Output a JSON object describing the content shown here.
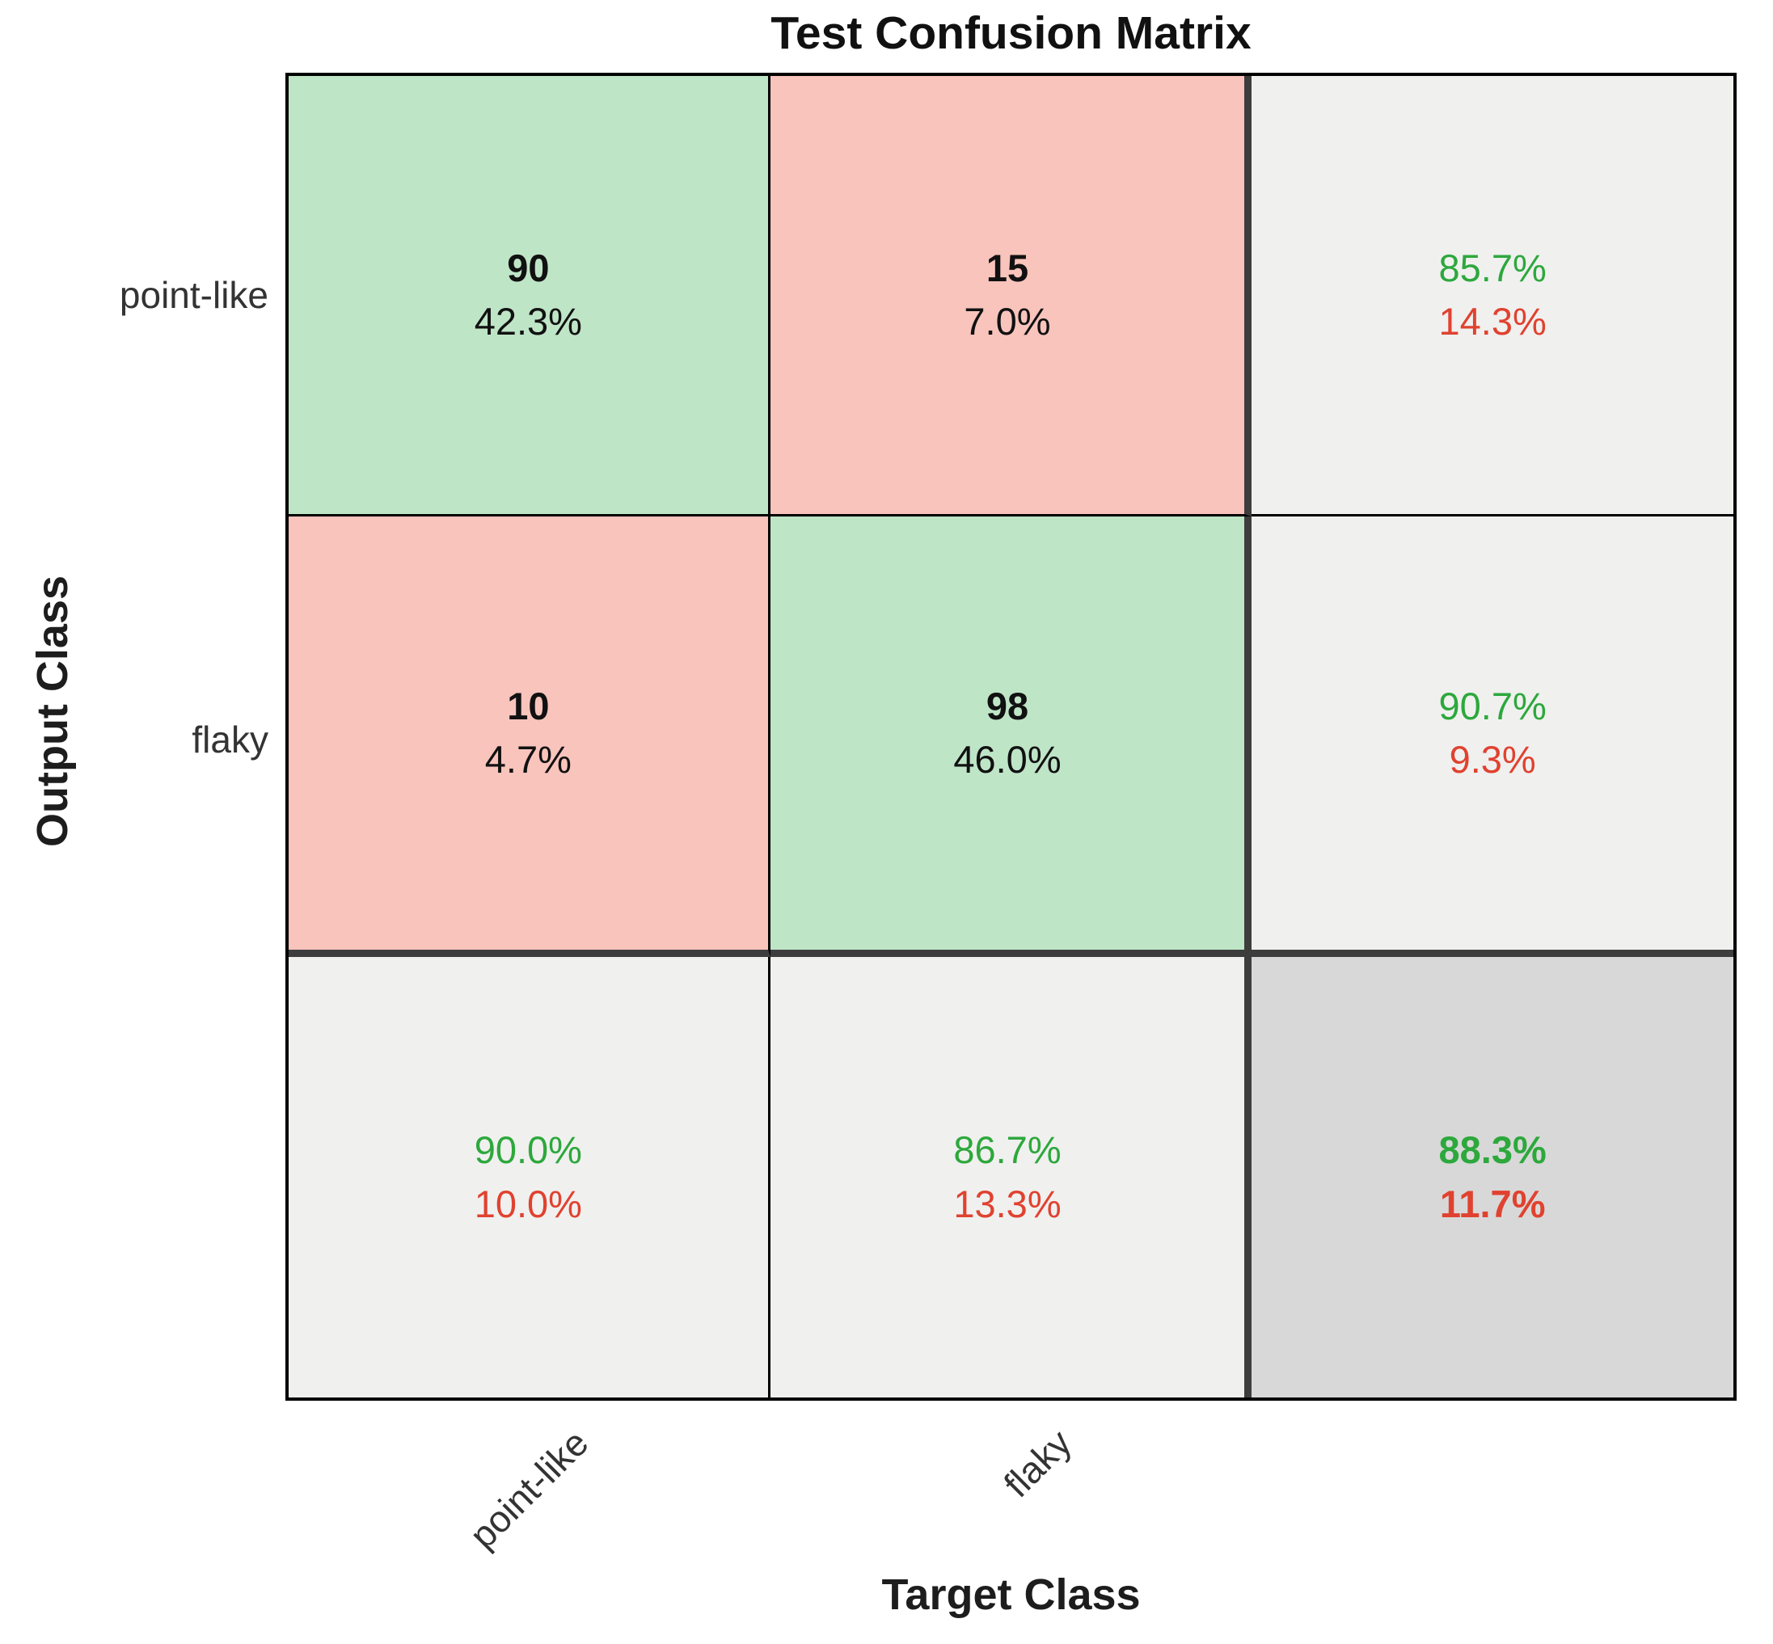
{
  "title": "Test Confusion Matrix",
  "axes": {
    "x_label": "Target Class",
    "y_label": "Output Class"
  },
  "ticks": {
    "x": [
      "point-like",
      "flaky"
    ],
    "y": [
      "point-like",
      "flaky"
    ]
  },
  "cells": [
    {
      "type": "count",
      "value": "90",
      "percent": "42.3%"
    },
    {
      "type": "count",
      "value": "15",
      "percent": "7.0%"
    },
    {
      "type": "summary",
      "green": "85.7%",
      "red": "14.3%"
    },
    {
      "type": "count",
      "value": "10",
      "percent": "4.7%"
    },
    {
      "type": "count",
      "value": "98",
      "percent": "46.0%"
    },
    {
      "type": "summary",
      "green": "90.7%",
      "red": "9.3%"
    },
    {
      "type": "summary",
      "green": "90.0%",
      "red": "10.0%"
    },
    {
      "type": "summary",
      "green": "86.7%",
      "red": "13.3%"
    },
    {
      "type": "summary",
      "green": "88.3%",
      "red": "11.7%",
      "bold": true
    }
  ],
  "colors": {
    "correct_cell_bg": "#bfe5c7",
    "incorrect_cell_bg": "#f8c4bc",
    "summary_cell_bg": "#f0f0ef",
    "overall_cell_bg": "#d8d8d8",
    "positive_text": "#2da83c",
    "negative_text": "#e0422f",
    "thick_separator": "#3d3d3d",
    "grid_line": "#000000"
  },
  "chart_data": {
    "type": "heatmap",
    "title": "Test Confusion Matrix",
    "xlabel": "Target Class",
    "ylabel": "Output Class",
    "classes": [
      "point-like",
      "flaky"
    ],
    "confusion_counts_rows_output_cols_target": [
      [
        90,
        15
      ],
      [
        10,
        98
      ]
    ],
    "cell_percent_of_total": [
      [
        42.3,
        7.0
      ],
      [
        4.7,
        46.0
      ]
    ],
    "row_summary_correct_pct": [
      85.7,
      90.7
    ],
    "row_summary_error_pct": [
      14.3,
      9.3
    ],
    "col_summary_correct_pct": [
      90.0,
      86.7
    ],
    "col_summary_error_pct": [
      10.0,
      13.3
    ],
    "overall_accuracy_pct": 88.3,
    "overall_error_pct": 11.7,
    "legend_position": "none",
    "grid": true
  }
}
